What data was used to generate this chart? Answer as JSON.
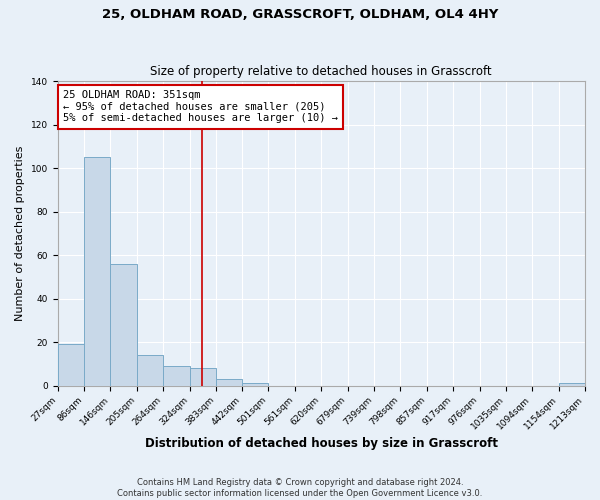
{
  "title": "25, OLDHAM ROAD, GRASSCROFT, OLDHAM, OL4 4HY",
  "subtitle": "Size of property relative to detached houses in Grasscroft",
  "xlabel": "Distribution of detached houses by size in Grasscroft",
  "ylabel": "Number of detached properties",
  "footer_line1": "Contains HM Land Registry data © Crown copyright and database right 2024.",
  "footer_line2": "Contains public sector information licensed under the Open Government Licence v3.0.",
  "bin_edges": [
    27,
    86,
    146,
    205,
    264,
    324,
    383,
    442,
    501,
    561,
    620,
    679,
    739,
    798,
    857,
    917,
    976,
    1035,
    1094,
    1154,
    1213
  ],
  "bar_heights": [
    19,
    105,
    56,
    14,
    9,
    8,
    3,
    1,
    0,
    0,
    0,
    0,
    0,
    0,
    0,
    0,
    0,
    0,
    0,
    1
  ],
  "bar_color": "#c8d8e8",
  "bar_edge_color": "#7aaac8",
  "vline_x": 351,
  "vline_color": "#cc0000",
  "ylim": [
    0,
    140
  ],
  "yticks": [
    0,
    20,
    40,
    60,
    80,
    100,
    120,
    140
  ],
  "annotation_line1": "25 OLDHAM ROAD: 351sqm",
  "annotation_line2": "← 95% of detached houses are smaller (205)",
  "annotation_line3": "5% of semi-detached houses are larger (10) →",
  "annotation_box_color": "#cc0000",
  "background_color": "#e8f0f8",
  "grid_color": "#ffffff",
  "title_fontsize": 9.5,
  "subtitle_fontsize": 8.5,
  "xlabel_fontsize": 8.5,
  "ylabel_fontsize": 8,
  "tick_fontsize": 6.5,
  "annotation_fontsize": 7.5,
  "footer_fontsize": 6
}
